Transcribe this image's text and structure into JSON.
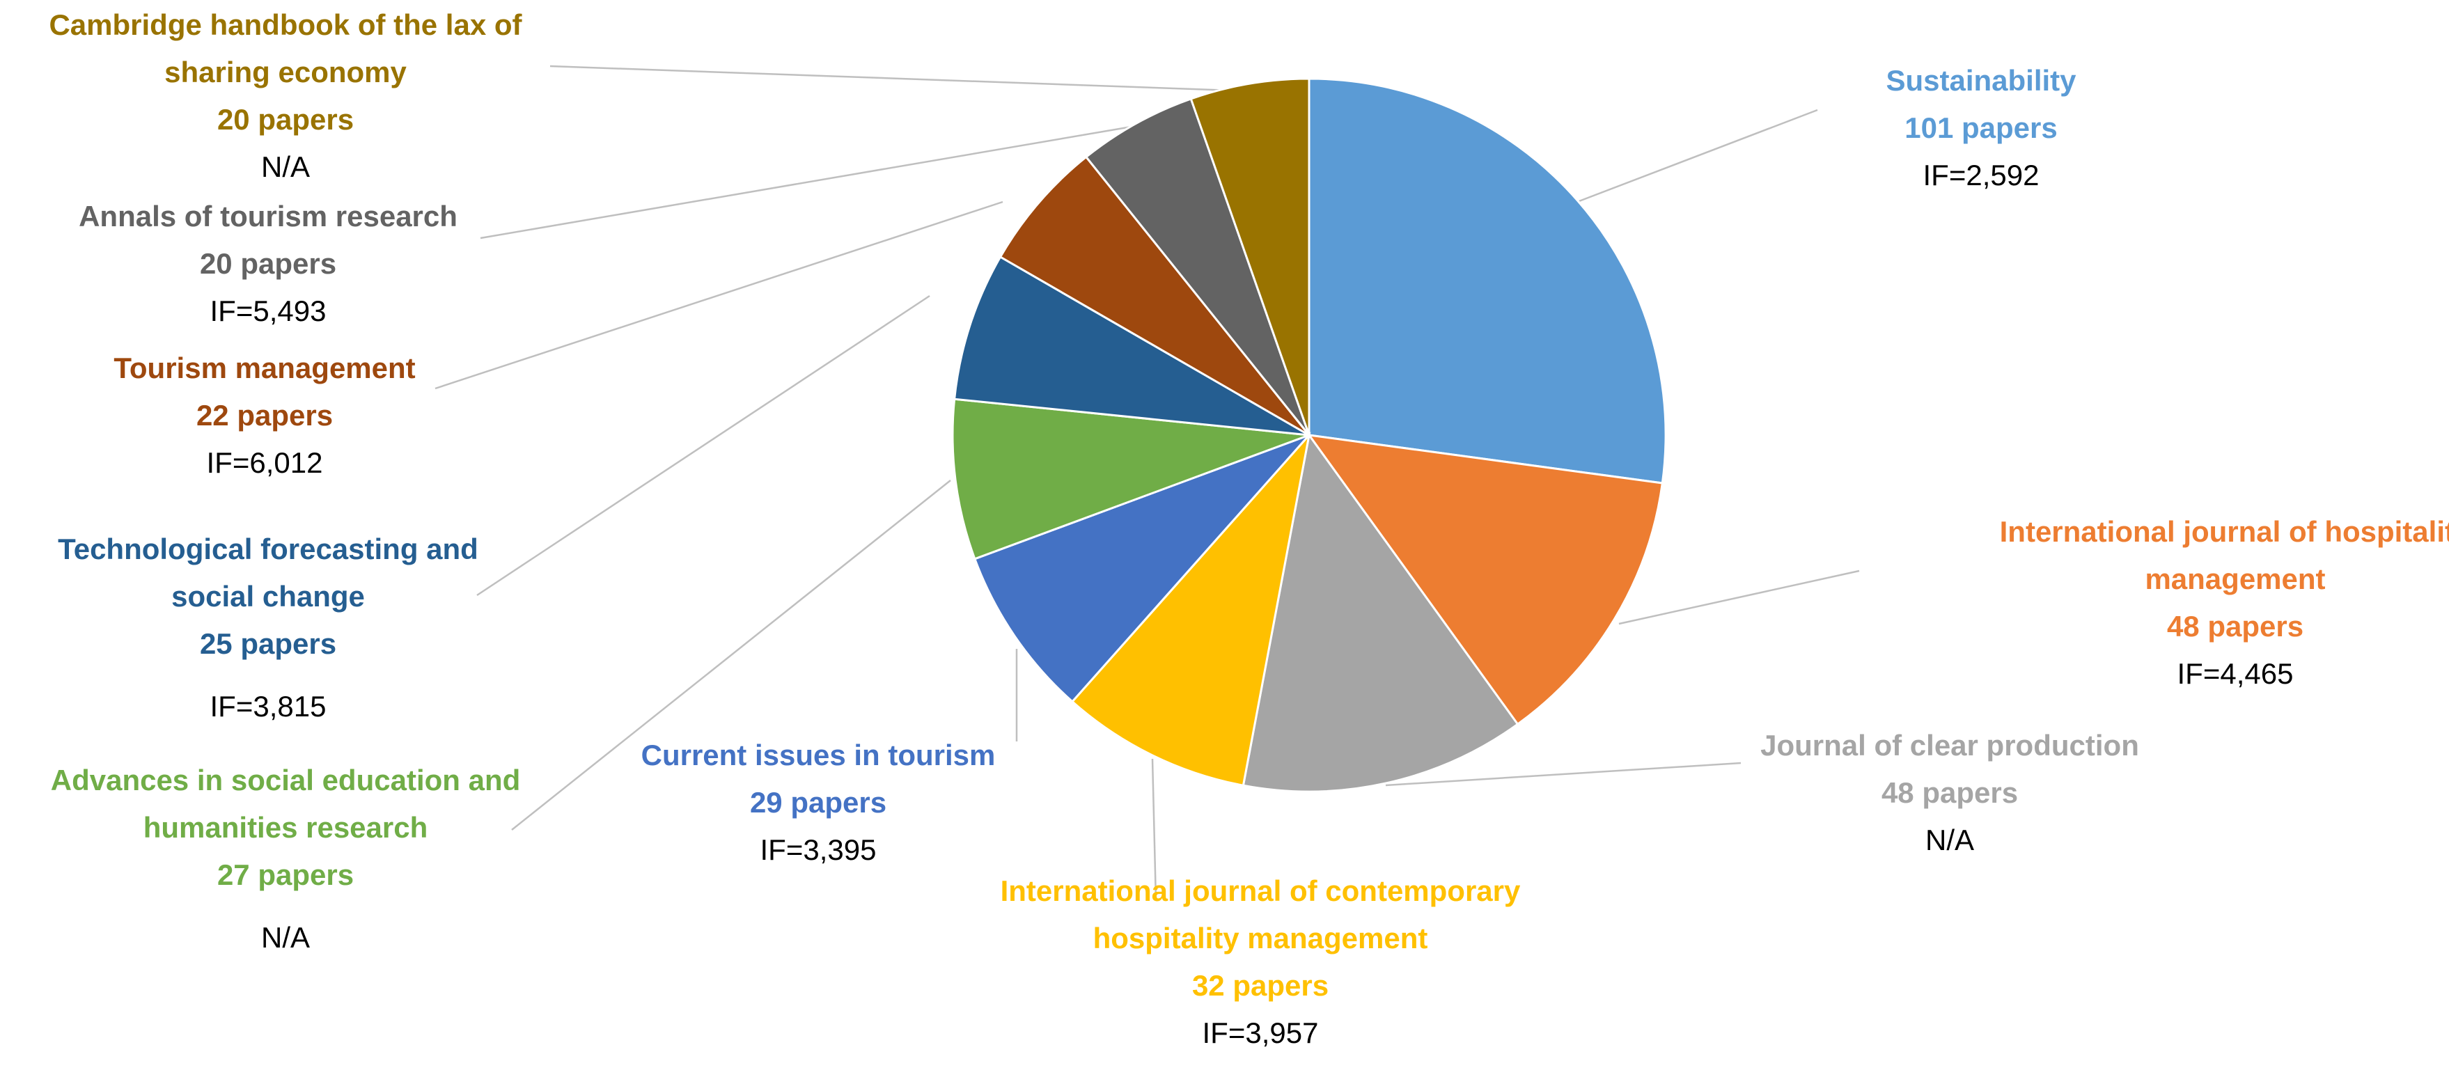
{
  "chart_data": {
    "type": "pie",
    "title": "",
    "start_angle_deg": 0,
    "direction": "clockwise",
    "slices": [
      {
        "label": [
          "Sustainability"
        ],
        "count": "101 papers",
        "value": 101,
        "if": "IF=2,592",
        "color": "#5B9BD5"
      },
      {
        "label": [
          "International journal of hospitality",
          "management"
        ],
        "count": "48 papers",
        "value": 48,
        "if": "IF=4,465",
        "color": "#ED7D31"
      },
      {
        "label": [
          "Journal of clear production"
        ],
        "count": "48 papers",
        "value": 48,
        "if": "N/A",
        "color": "#A5A5A5"
      },
      {
        "label": [
          "International journal of contemporary",
          "hospitality management"
        ],
        "count": "32 papers",
        "value": 32,
        "if": "IF=3,957",
        "color": "#FFC000"
      },
      {
        "label": [
          "Current issues in tourism"
        ],
        "count": "29 papers",
        "value": 29,
        "if": "IF=3,395",
        "color": "#4472C4"
      },
      {
        "label": [
          "Advances in social education and",
          "humanities research"
        ],
        "count": "27 papers",
        "value": 27,
        "if": "N/A",
        "color": "#70AD47"
      },
      {
        "label": [
          "Technological forecasting and",
          "social change"
        ],
        "count": "25 papers",
        "value": 25,
        "if": "IF=3,815",
        "color": "#255E91"
      },
      {
        "label": [
          "Tourism management"
        ],
        "count": "22 papers",
        "value": 22,
        "if": "IF=6,012",
        "color": "#9E480E"
      },
      {
        "label": [
          "Annals of tourism research"
        ],
        "count": "20 papers",
        "value": 20,
        "if": "IF=5,493",
        "color": "#636363"
      },
      {
        "label": [
          "Cambridge handbook of the lax of",
          "sharing economy"
        ],
        "count": "20 papers",
        "value": 20,
        "if": "N/A",
        "color": "#997300"
      }
    ]
  }
}
